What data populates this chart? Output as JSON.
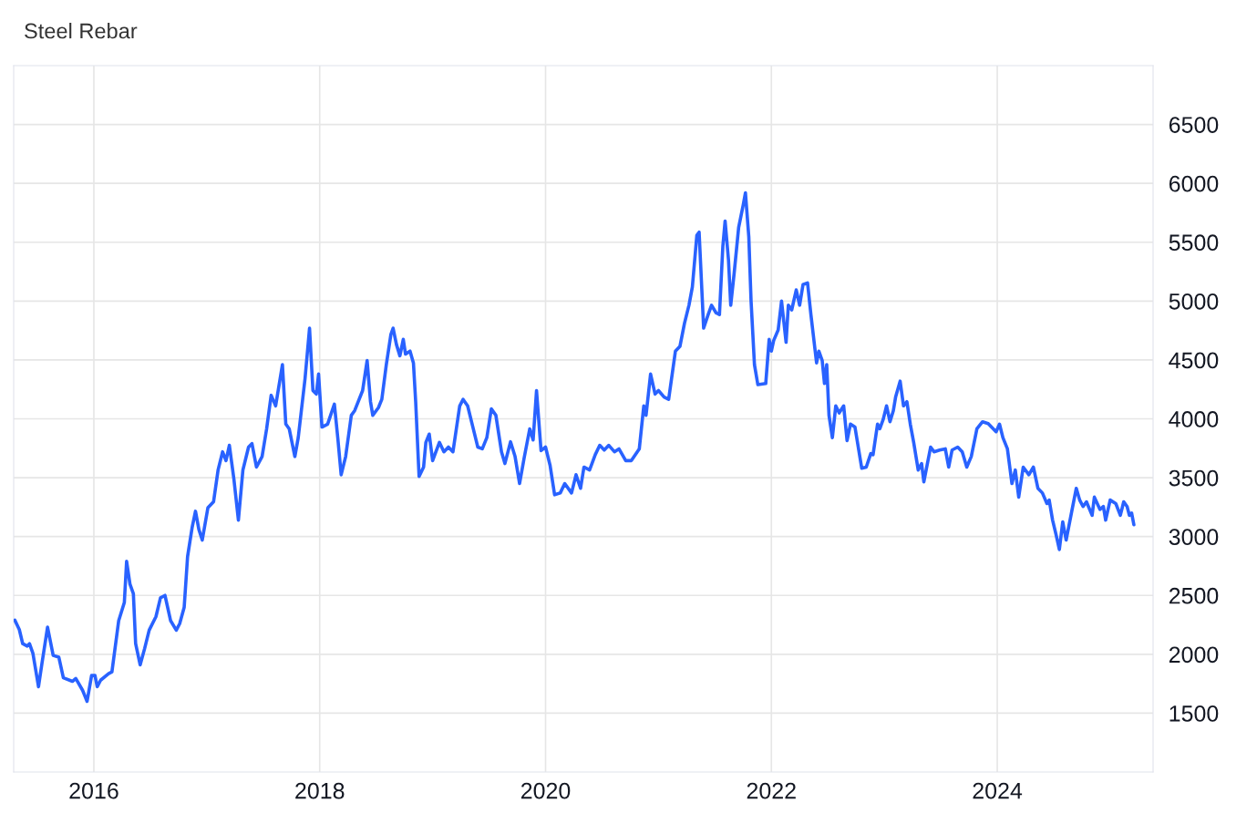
{
  "chart_data": {
    "type": "line",
    "title": "Steel Rebar",
    "x": [
      2015.3,
      2015.34,
      2015.37,
      2015.41,
      2015.43,
      2015.46,
      2015.51,
      2015.54,
      2015.59,
      2015.64,
      2015.69,
      2015.73,
      2015.81,
      2015.84,
      2015.9,
      2015.94,
      2015.98,
      2016.01,
      2016.03,
      2016.06,
      2016.13,
      2016.16,
      2016.22,
      2016.27,
      2016.29,
      2016.32,
      2016.35,
      2016.37,
      2016.41,
      2016.45,
      2016.49,
      2016.55,
      2016.59,
      2016.63,
      2016.68,
      2016.73,
      2016.76,
      2016.8,
      2016.83,
      2016.87,
      2016.9,
      2016.93,
      2016.96,
      2017.01,
      2017.06,
      2017.1,
      2017.14,
      2017.17,
      2017.2,
      2017.24,
      2017.28,
      2017.32,
      2017.37,
      2017.4,
      2017.44,
      2017.49,
      2017.53,
      2017.57,
      2017.61,
      2017.67,
      2017.7,
      2017.73,
      2017.78,
      2017.81,
      2017.87,
      2017.91,
      2017.94,
      2017.97,
      2017.99,
      2018.02,
      2018.07,
      2018.13,
      2018.16,
      2018.19,
      2018.23,
      2018.28,
      2018.31,
      2018.38,
      2018.42,
      2018.45,
      2018.47,
      2018.52,
      2018.55,
      2018.59,
      2018.63,
      2018.65,
      2018.68,
      2018.71,
      2018.74,
      2018.76,
      2018.8,
      2018.83,
      2018.85,
      2018.88,
      2018.92,
      2018.94,
      2018.97,
      2019.0,
      2019.06,
      2019.1,
      2019.14,
      2019.18,
      2019.24,
      2019.27,
      2019.31,
      2019.35,
      2019.4,
      2019.44,
      2019.48,
      2019.52,
      2019.56,
      2019.61,
      2019.64,
      2019.69,
      2019.73,
      2019.77,
      2019.81,
      2019.86,
      2019.89,
      2019.92,
      2019.96,
      2020.0,
      2020.04,
      2020.08,
      2020.13,
      2020.17,
      2020.23,
      2020.27,
      2020.31,
      2020.34,
      2020.39,
      2020.44,
      2020.48,
      2020.52,
      2020.56,
      2020.61,
      2020.65,
      2020.71,
      2020.76,
      2020.83,
      2020.87,
      2020.89,
      2020.93,
      2020.97,
      2021.0,
      2021.05,
      2021.09,
      2021.15,
      2021.19,
      2021.23,
      2021.27,
      2021.3,
      2021.34,
      2021.36,
      2021.4,
      2021.44,
      2021.47,
      2021.51,
      2021.54,
      2021.57,
      2021.59,
      2021.62,
      2021.64,
      2021.67,
      2021.71,
      2021.75,
      2021.77,
      2021.8,
      2021.82,
      2021.85,
      2021.88,
      2021.95,
      2021.98,
      2022.0,
      2022.02,
      2022.06,
      2022.09,
      2022.13,
      2022.15,
      2022.18,
      2022.22,
      2022.25,
      2022.28,
      2022.32,
      2022.35,
      2022.4,
      2022.42,
      2022.45,
      2022.47,
      2022.49,
      2022.51,
      2022.54,
      2022.57,
      2022.6,
      2022.64,
      2022.67,
      2022.7,
      2022.74,
      2022.8,
      2022.84,
      2022.88,
      2022.9,
      2022.94,
      2022.96,
      2022.99,
      2023.02,
      2023.05,
      2023.08,
      2023.1,
      2023.14,
      2023.17,
      2023.2,
      2023.23,
      2023.26,
      2023.3,
      2023.33,
      2023.35,
      2023.41,
      2023.44,
      2023.49,
      2023.54,
      2023.57,
      2023.6,
      2023.65,
      2023.69,
      2023.73,
      2023.77,
      2023.82,
      2023.87,
      2023.92,
      2023.99,
      2024.02,
      2024.05,
      2024.09,
      2024.13,
      2024.16,
      2024.19,
      2024.23,
      2024.28,
      2024.32,
      2024.36,
      2024.4,
      2024.44,
      2024.46,
      2024.49,
      2024.52,
      2024.55,
      2024.58,
      2024.61,
      2024.66,
      2024.7,
      2024.73,
      2024.76,
      2024.79,
      2024.84,
      2024.86,
      2024.91,
      2024.94,
      2024.96,
      2025.0,
      2025.05,
      2025.09,
      2025.12,
      2025.15,
      2025.17,
      2025.19,
      2025.21
    ],
    "series": [
      {
        "color": "#2962ff",
        "values": [
          2290,
          2210,
          2090,
          2070,
          2090,
          2010,
          1725,
          1920,
          2230,
          1990,
          1975,
          1800,
          1770,
          1795,
          1695,
          1600,
          1820,
          1820,
          1725,
          1780,
          1835,
          1850,
          2285,
          2440,
          2790,
          2595,
          2515,
          2090,
          1910,
          2050,
          2205,
          2320,
          2480,
          2500,
          2285,
          2205,
          2260,
          2400,
          2830,
          3075,
          3215,
          3060,
          2970,
          3245,
          3295,
          3565,
          3720,
          3645,
          3775,
          3490,
          3140,
          3565,
          3760,
          3790,
          3590,
          3680,
          3915,
          4200,
          4110,
          4460,
          3955,
          3915,
          3680,
          3840,
          4340,
          4770,
          4240,
          4210,
          4380,
          3930,
          3955,
          4125,
          3840,
          3525,
          3680,
          4030,
          4070,
          4240,
          4495,
          4145,
          4030,
          4095,
          4165,
          4460,
          4715,
          4770,
          4630,
          4535,
          4675,
          4550,
          4575,
          4475,
          4145,
          3510,
          3590,
          3800,
          3870,
          3645,
          3800,
          3720,
          3760,
          3720,
          4110,
          4165,
          4110,
          3955,
          3760,
          3745,
          3840,
          4085,
          4030,
          3720,
          3620,
          3805,
          3680,
          3450,
          3665,
          3915,
          3820,
          4240,
          3730,
          3760,
          3605,
          3355,
          3370,
          3450,
          3370,
          3525,
          3410,
          3590,
          3565,
          3695,
          3775,
          3735,
          3775,
          3720,
          3745,
          3645,
          3645,
          3745,
          4110,
          4030,
          4380,
          4210,
          4240,
          4185,
          4165,
          4575,
          4615,
          4810,
          4965,
          5120,
          5560,
          5585,
          4770,
          4885,
          4965,
          4900,
          4885,
          5465,
          5680,
          5350,
          4965,
          5235,
          5625,
          5815,
          5920,
          5545,
          5000,
          4460,
          4290,
          4300,
          4675,
          4575,
          4665,
          4755,
          5000,
          4650,
          4965,
          4925,
          5095,
          4965,
          5140,
          5155,
          4885,
          4475,
          4575,
          4495,
          4300,
          4460,
          4030,
          3840,
          4110,
          4050,
          4110,
          3815,
          3955,
          3930,
          3580,
          3590,
          3705,
          3695,
          3955,
          3915,
          3995,
          4110,
          3975,
          4070,
          4185,
          4320,
          4110,
          4145,
          3955,
          3800,
          3565,
          3620,
          3465,
          3760,
          3720,
          3735,
          3745,
          3590,
          3735,
          3760,
          3720,
          3590,
          3680,
          3915,
          3975,
          3960,
          3890,
          3955,
          3840,
          3745,
          3450,
          3565,
          3335,
          3590,
          3525,
          3590,
          3410,
          3370,
          3280,
          3310,
          3140,
          3020,
          2890,
          3125,
          2970,
          3215,
          3410,
          3310,
          3255,
          3295,
          3180,
          3335,
          3230,
          3255,
          3140,
          3310,
          3280,
          3180,
          3295,
          3255,
          3180,
          3200,
          3100
        ]
      }
    ],
    "xlim": [
      2015.29,
      2025.38
    ],
    "xticks": [
      2016,
      2018,
      2020,
      2022,
      2024
    ],
    "ylim": [
      1000,
      7000
    ],
    "yticks": [
      1500,
      2000,
      2500,
      3000,
      3500,
      4000,
      4500,
      5000,
      5500,
      6000,
      6500
    ],
    "grid": true,
    "line_style": "solid",
    "marker": "none"
  }
}
